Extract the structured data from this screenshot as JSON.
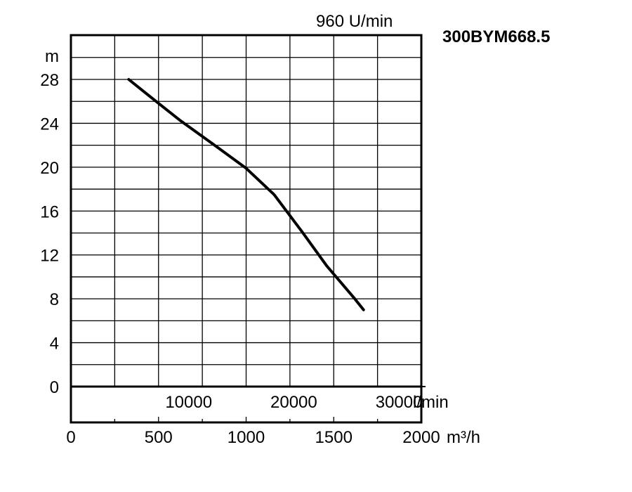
{
  "chart_data": {
    "type": "line",
    "title": "300BYM668.5",
    "speed_label": "960 U/min",
    "y_unit": "m",
    "x_unit_top": "l/min",
    "x_unit_bottom": "m³/h",
    "ylim": [
      0,
      28
    ],
    "xlim": [
      0,
      2000
    ],
    "grid": true,
    "y_ticks": [
      {
        "value": 0,
        "label": "0"
      },
      {
        "value": 4,
        "label": "4"
      },
      {
        "value": 8,
        "label": "8"
      },
      {
        "value": 12,
        "label": "12"
      },
      {
        "value": 16,
        "label": "16"
      },
      {
        "value": 20,
        "label": "20"
      },
      {
        "value": 24,
        "label": "24"
      },
      {
        "value": 28,
        "label": "28"
      }
    ],
    "x_ticks_lmin": [
      {
        "value": 10000,
        "label": "10000"
      },
      {
        "value": 20000,
        "label": "20000"
      },
      {
        "value": 30000,
        "label": "30000"
      }
    ],
    "x_ticks_m3h": [
      {
        "value": 0,
        "label": "0"
      },
      {
        "value": 500,
        "label": "500"
      },
      {
        "value": 1000,
        "label": "1000"
      },
      {
        "value": 1500,
        "label": "1500"
      },
      {
        "value": 2000,
        "label": "2000"
      }
    ],
    "series": [
      {
        "x": [
          330,
          470,
          620,
          820,
          1000,
          1160,
          1320,
          1460,
          1620,
          1670
        ],
        "y": [
          28,
          26.2,
          24.3,
          22.0,
          19.9,
          17.5,
          14.1,
          11.0,
          8.0,
          7.0
        ]
      }
    ]
  }
}
